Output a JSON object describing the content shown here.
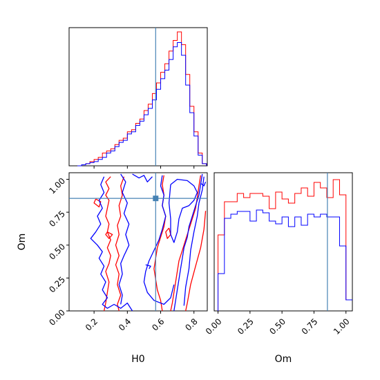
{
  "chart_data": {
    "type": "corner",
    "parameters": [
      "H0",
      "Om"
    ],
    "truths": {
      "H0": 0.57,
      "Om": 0.855
    },
    "truth_color": "#4682b4",
    "series": [
      {
        "color": "#ff0000"
      },
      {
        "color": "#0000ff"
      }
    ],
    "panels": {
      "h0_hist": {
        "xlim": [
          0.05,
          0.88
        ],
        "bin_edges": [
          0.1,
          0.125,
          0.15,
          0.175,
          0.2,
          0.225,
          0.25,
          0.275,
          0.3,
          0.325,
          0.35,
          0.375,
          0.4,
          0.425,
          0.45,
          0.475,
          0.5,
          0.525,
          0.55,
          0.575,
          0.6,
          0.625,
          0.65,
          0.675,
          0.7,
          0.725,
          0.75,
          0.775,
          0.8,
          0.825,
          0.85,
          0.875
        ],
        "red_counts": [
          0,
          0.5,
          1,
          2,
          3,
          4,
          6,
          7,
          8,
          10,
          12,
          13,
          16,
          17,
          20,
          22,
          26,
          29,
          34,
          39,
          44,
          48,
          54,
          59,
          63,
          57,
          43,
          28,
          16,
          6,
          1
        ],
        "blue_counts": [
          0,
          0.5,
          1,
          1.5,
          2,
          3,
          4,
          6,
          7,
          9,
          11,
          12,
          15,
          16,
          19,
          21,
          24,
          27,
          31,
          36,
          41,
          45,
          50,
          56,
          58,
          52,
          38,
          25,
          14,
          5,
          1
        ],
        "ymax": 65
      },
      "h0_om_2d": {
        "xlim": [
          0.05,
          0.88
        ],
        "ylim": [
          0.0,
          1.05
        ],
        "xticks": [
          "0.2",
          "0.4",
          "0.6",
          "0.8"
        ],
        "xtick_values": [
          0.2,
          0.4,
          0.6,
          0.8
        ],
        "yticks": [
          "0.00",
          "0.25",
          "0.50",
          "0.75",
          "1.00"
        ],
        "ytick_values": [
          0.0,
          0.25,
          0.5,
          0.75,
          1.0
        ],
        "xlabel": "H0",
        "ylabel": "Om"
      },
      "om_hist": {
        "xlim": [
          -0.03,
          1.05
        ],
        "xticks": [
          "0.00",
          "0.25",
          "0.50",
          "0.75",
          "1.00"
        ],
        "xtick_values": [
          0.0,
          0.25,
          0.5,
          0.75,
          1.0
        ],
        "xlabel": "Om",
        "bin_edges": [
          0.0,
          0.05,
          0.1,
          0.15,
          0.2,
          0.25,
          0.3,
          0.35,
          0.4,
          0.45,
          0.5,
          0.55,
          0.6,
          0.65,
          0.7,
          0.75,
          0.8,
          0.85,
          0.9,
          0.95,
          1.0,
          1.05
        ],
        "red_counts": [
          55,
          79,
          79,
          85,
          82,
          85,
          85,
          83,
          74,
          86,
          81,
          78,
          85,
          89,
          83,
          93,
          89,
          82,
          95,
          84,
          8
        ],
        "blue_counts": [
          27,
          67,
          70,
          72,
          72,
          65,
          73,
          71,
          65,
          63,
          68,
          61,
          68,
          62,
          70,
          68,
          70,
          68,
          68,
          47,
          8
        ],
        "ymax": 100
      }
    }
  }
}
